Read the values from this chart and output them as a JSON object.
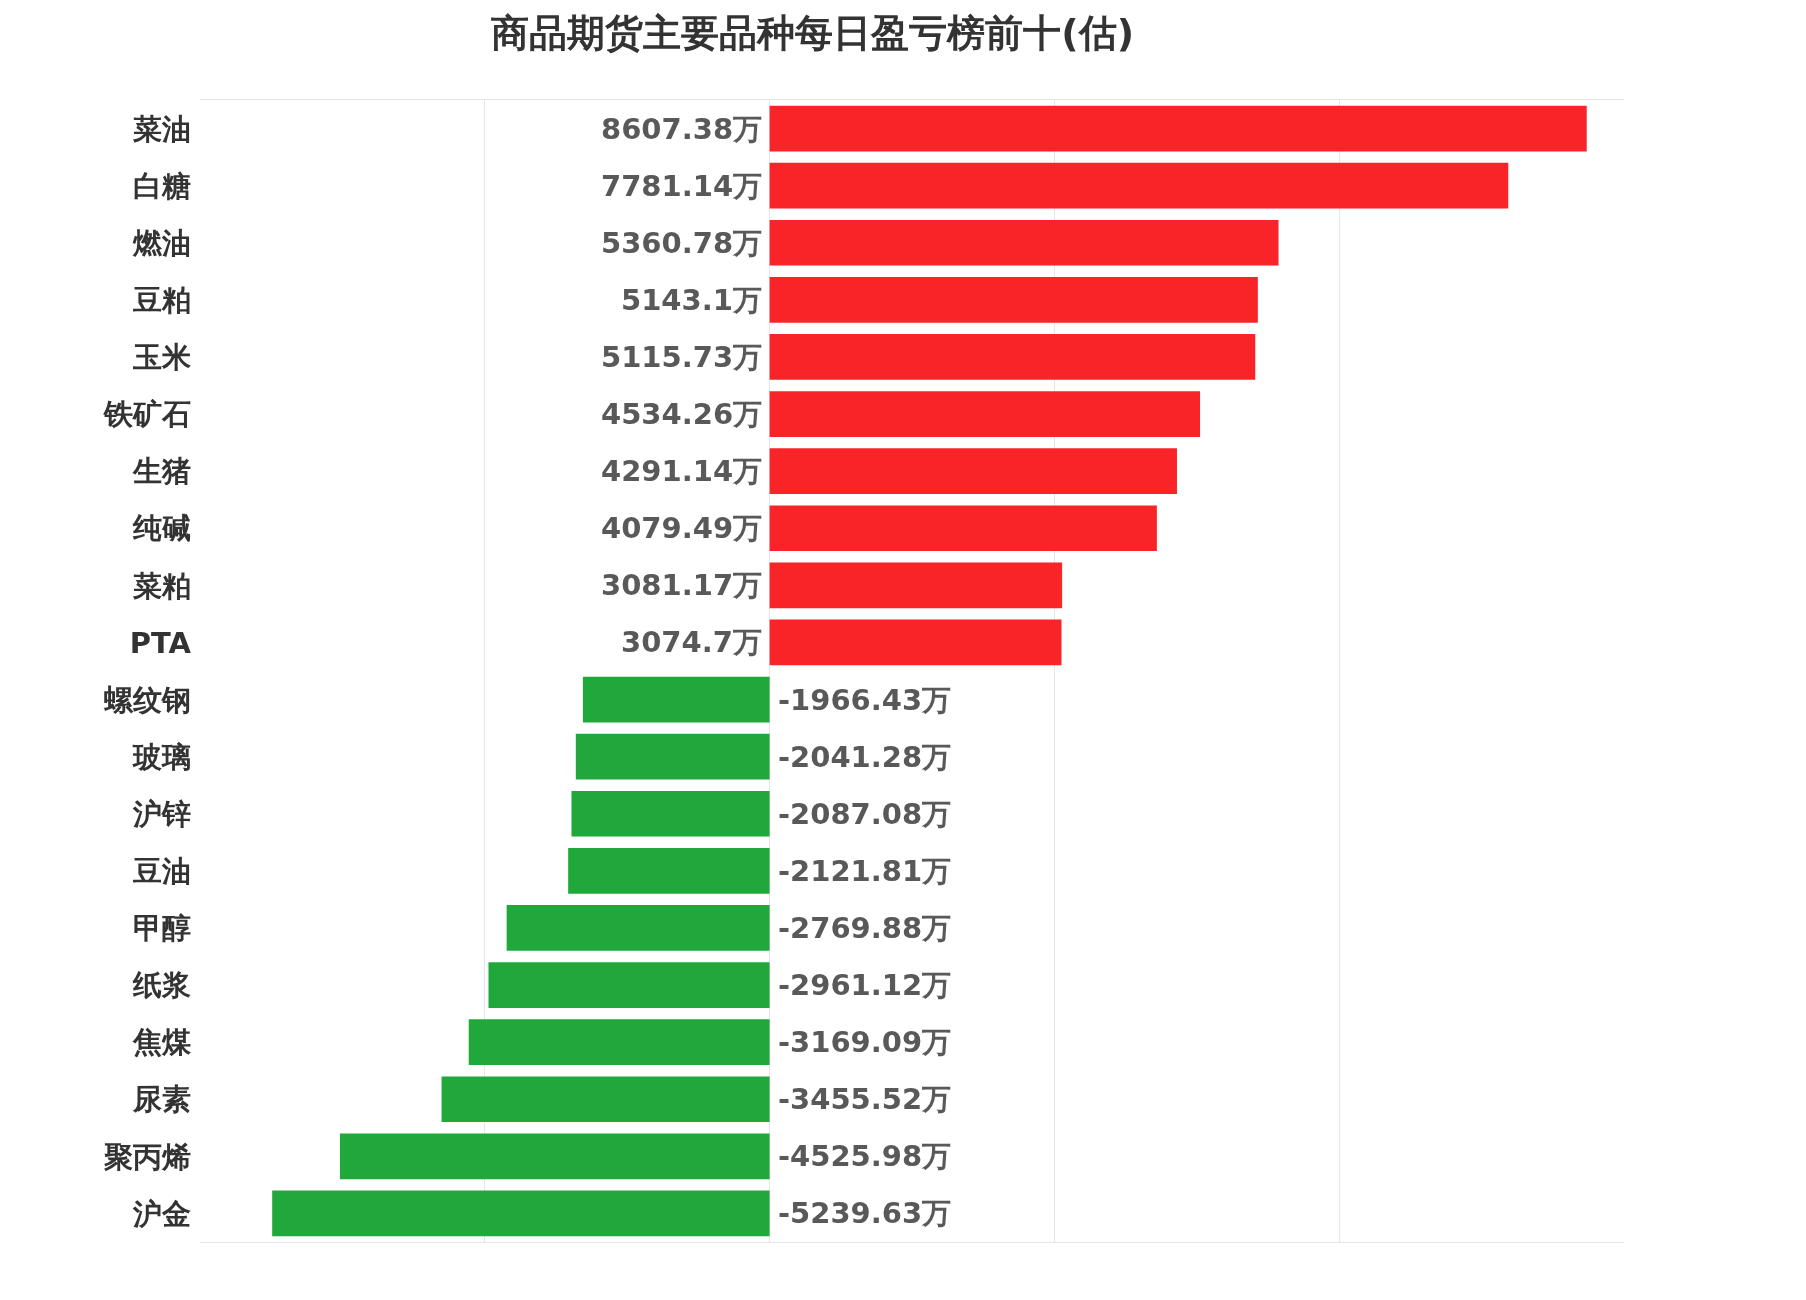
{
  "chart_data": {
    "type": "bar",
    "orientation": "horizontal",
    "title": "商品期货主要品种每日盈亏榜前十(估)",
    "categories": [
      "菜油",
      "白糖",
      "燃油",
      "豆粕",
      "玉米",
      "铁矿石",
      "生猪",
      "纯碱",
      "菜粕",
      "PTA",
      "螺纹钢",
      "玻璃",
      "沪锌",
      "豆油",
      "甲醇",
      "纸浆",
      "焦煤",
      "尿素",
      "聚丙烯",
      "沪金"
    ],
    "values": [
      8607.38,
      7781.14,
      5360.78,
      5143.1,
      5115.73,
      4534.26,
      4291.14,
      4079.49,
      3081.17,
      3074.7,
      -1966.43,
      -2041.28,
      -2087.08,
      -2121.81,
      -2769.88,
      -2961.12,
      -3169.09,
      -3455.52,
      -4525.98,
      -5239.63
    ],
    "value_labels": [
      "8607.38万",
      "7781.14万",
      "5360.78万",
      "5143.1万",
      "5115.73万",
      "4534.26万",
      "4291.14万",
      "4079.49万",
      "3081.17万",
      "3074.7万",
      "-1966.43万",
      "-2041.28万",
      "-2087.08万",
      "-2121.81万",
      "-2769.88万",
      "-2961.12万",
      "-3169.09万",
      "-3455.52万",
      "-4525.98万",
      "-5239.63万"
    ],
    "colors": [
      "#f92428",
      "#f92428",
      "#f92428",
      "#f92428",
      "#f92428",
      "#f92428",
      "#f92428",
      "#f92428",
      "#f92428",
      "#f92428",
      "#20a83a",
      "#20a83a",
      "#20a83a",
      "#20a83a",
      "#20a83a",
      "#20a83a",
      "#20a83a",
      "#20a83a",
      "#20a83a",
      "#20a83a"
    ],
    "xlim": [
      -6000,
      9000
    ],
    "xticks": [
      {
        "value": -3000,
        "label": null
      },
      {
        "value": 0,
        "label": null
      },
      {
        "value": 3000,
        "label": null
      },
      {
        "value": 6000,
        "label": null
      }
    ],
    "grid": "x",
    "tick_labels": "y",
    "legend": false
  }
}
